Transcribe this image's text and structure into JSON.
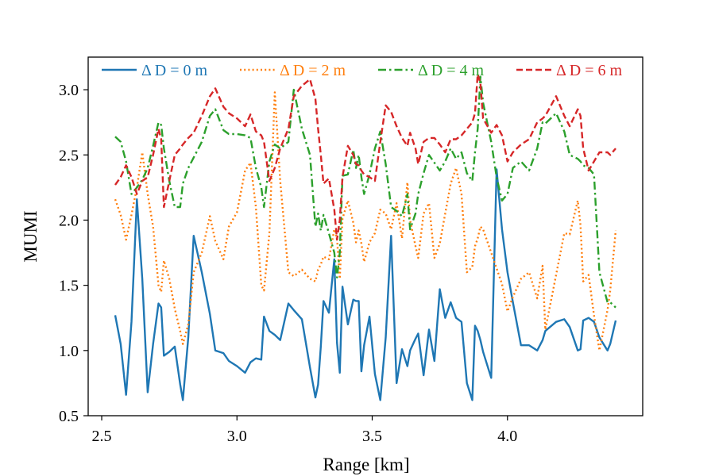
{
  "chart_data": {
    "type": "line",
    "title": "",
    "xlabel": "Range [km]",
    "ylabel": "MUMI",
    "xlim": [
      2.45,
      4.5
    ],
    "ylim": [
      0.5,
      3.25
    ],
    "xticks": [
      2.5,
      3.0,
      3.5,
      4.0
    ],
    "xtick_labels": [
      "2.5",
      "3.0",
      "3.5",
      "4.0"
    ],
    "yticks": [
      0.5,
      1.0,
      1.5,
      2.0,
      2.5,
      3.0
    ],
    "ytick_labels": [
      "0.5",
      "1.0",
      "1.5",
      "2.0",
      "2.5",
      "3.0"
    ],
    "grid": false,
    "legend": {
      "placement": "top",
      "ncol": 4
    },
    "series": [
      {
        "name": "Δ D = 0 m",
        "color": "#1f77b4",
        "style": "solid",
        "x": [
          2.55,
          2.57,
          2.59,
          2.61,
          2.63,
          2.65,
          2.67,
          2.69,
          2.71,
          2.72,
          2.73,
          2.75,
          2.77,
          2.79,
          2.8,
          2.82,
          2.84,
          2.87,
          2.9,
          2.92,
          2.95,
          2.97,
          3.0,
          3.03,
          3.05,
          3.07,
          3.09,
          3.1,
          3.12,
          3.14,
          3.16,
          3.19,
          3.21,
          3.24,
          3.27,
          3.29,
          3.3,
          3.31,
          3.32,
          3.34,
          3.36,
          3.37,
          3.38,
          3.39,
          3.41,
          3.43,
          3.44,
          3.45,
          3.46,
          3.47,
          3.49,
          3.51,
          3.53,
          3.55,
          3.57,
          3.59,
          3.61,
          3.63,
          3.64,
          3.66,
          3.67,
          3.69,
          3.71,
          3.73,
          3.75,
          3.77,
          3.79,
          3.81,
          3.83,
          3.85,
          3.87,
          3.88,
          3.89,
          3.9,
          3.91,
          3.94,
          3.96,
          3.98,
          4.0,
          4.02,
          4.05,
          4.08,
          4.11,
          4.13,
          4.14,
          4.18,
          4.21,
          4.23,
          4.26,
          4.27,
          4.28,
          4.3,
          4.32,
          4.34,
          4.37,
          4.38,
          4.4
        ],
        "values": [
          1.27,
          1.05,
          0.66,
          1.22,
          2.16,
          1.55,
          0.68,
          1.05,
          1.36,
          1.33,
          0.96,
          0.99,
          1.03,
          0.74,
          0.62,
          1.1,
          1.88,
          1.6,
          1.28,
          1.0,
          0.98,
          0.92,
          0.88,
          0.83,
          0.91,
          0.94,
          0.93,
          1.26,
          1.15,
          1.12,
          1.08,
          1.36,
          1.31,
          1.24,
          0.87,
          0.64,
          0.74,
          1.03,
          1.38,
          1.29,
          1.7,
          1.06,
          0.83,
          1.49,
          1.2,
          1.39,
          1.38,
          1.38,
          0.84,
          1.04,
          1.26,
          0.82,
          0.62,
          1.1,
          1.88,
          0.75,
          1.01,
          0.88,
          1.0,
          1.09,
          1.13,
          0.81,
          1.16,
          0.92,
          1.47,
          1.25,
          1.37,
          1.25,
          1.22,
          0.75,
          0.62,
          1.19,
          1.15,
          1.08,
          0.99,
          0.79,
          2.39,
          1.93,
          1.6,
          1.37,
          1.04,
          1.04,
          1.0,
          1.08,
          1.15,
          1.22,
          1.24,
          1.18,
          1.0,
          1.01,
          1.23,
          1.25,
          1.22,
          1.1,
          1.0,
          1.05,
          1.23
        ]
      },
      {
        "name": "Δ D = 2 m",
        "color": "#ff7f0e",
        "style": "dotted",
        "x": [
          2.55,
          2.57,
          2.59,
          2.61,
          2.63,
          2.65,
          2.67,
          2.69,
          2.71,
          2.72,
          2.73,
          2.75,
          2.77,
          2.79,
          2.8,
          2.82,
          2.84,
          2.87,
          2.9,
          2.92,
          2.95,
          2.97,
          3.0,
          3.03,
          3.05,
          3.07,
          3.09,
          3.1,
          3.12,
          3.14,
          3.16,
          3.19,
          3.21,
          3.24,
          3.27,
          3.29,
          3.3,
          3.31,
          3.32,
          3.34,
          3.36,
          3.37,
          3.38,
          3.39,
          3.41,
          3.43,
          3.44,
          3.45,
          3.46,
          3.47,
          3.49,
          3.51,
          3.53,
          3.55,
          3.57,
          3.59,
          3.61,
          3.63,
          3.64,
          3.66,
          3.67,
          3.69,
          3.71,
          3.73,
          3.75,
          3.77,
          3.79,
          3.81,
          3.83,
          3.85,
          3.87,
          3.88,
          3.89,
          3.9,
          3.91,
          3.94,
          3.96,
          3.98,
          4.0,
          4.02,
          4.05,
          4.08,
          4.11,
          4.13,
          4.14,
          4.18,
          4.21,
          4.23,
          4.26,
          4.27,
          4.28,
          4.3,
          4.32,
          4.34,
          4.37,
          4.38,
          4.4
        ],
        "values": [
          2.16,
          2.04,
          1.85,
          2.04,
          2.25,
          2.52,
          2.2,
          1.95,
          1.5,
          1.45,
          1.69,
          1.55,
          1.32,
          1.15,
          1.05,
          1.2,
          1.6,
          1.75,
          2.03,
          1.84,
          1.7,
          1.95,
          2.06,
          2.38,
          2.44,
          2.1,
          1.5,
          1.46,
          1.9,
          2.98,
          2.3,
          1.6,
          1.57,
          1.62,
          1.55,
          1.53,
          1.62,
          1.66,
          1.72,
          1.7,
          1.93,
          1.86,
          1.55,
          2.01,
          2.15,
          1.98,
          1.83,
          1.92,
          1.82,
          1.68,
          1.83,
          1.9,
          2.08,
          2.05,
          1.93,
          2.13,
          1.86,
          2.29,
          2.0,
          1.8,
          1.71,
          2.05,
          2.13,
          1.71,
          1.82,
          2.05,
          2.28,
          2.4,
          2.2,
          1.6,
          1.64,
          1.8,
          1.86,
          1.95,
          1.93,
          1.75,
          1.63,
          1.51,
          1.3,
          1.41,
          1.55,
          1.6,
          1.4,
          1.65,
          1.16,
          1.58,
          1.9,
          1.89,
          2.15,
          1.96,
          1.53,
          1.58,
          1.27,
          1.0,
          1.31,
          1.46,
          1.92
        ]
      },
      {
        "name": "Δ D = 4 m",
        "color": "#2ca02c",
        "style": "dashdot",
        "x": [
          2.55,
          2.57,
          2.59,
          2.61,
          2.63,
          2.65,
          2.67,
          2.69,
          2.71,
          2.72,
          2.73,
          2.75,
          2.77,
          2.79,
          2.8,
          2.82,
          2.84,
          2.87,
          2.9,
          2.92,
          2.95,
          2.97,
          3.0,
          3.03,
          3.05,
          3.07,
          3.09,
          3.1,
          3.12,
          3.14,
          3.16,
          3.19,
          3.21,
          3.24,
          3.27,
          3.29,
          3.3,
          3.31,
          3.32,
          3.34,
          3.36,
          3.37,
          3.38,
          3.39,
          3.41,
          3.43,
          3.44,
          3.45,
          3.46,
          3.47,
          3.49,
          3.51,
          3.53,
          3.55,
          3.57,
          3.59,
          3.61,
          3.63,
          3.64,
          3.66,
          3.67,
          3.69,
          3.71,
          3.73,
          3.75,
          3.77,
          3.79,
          3.81,
          3.83,
          3.85,
          3.87,
          3.88,
          3.89,
          3.9,
          3.91,
          3.94,
          3.96,
          3.98,
          4.0,
          4.02,
          4.05,
          4.08,
          4.11,
          4.13,
          4.14,
          4.18,
          4.21,
          4.23,
          4.26,
          4.27,
          4.28,
          4.3,
          4.32,
          4.34,
          4.37,
          4.38,
          4.4
        ],
        "values": [
          2.64,
          2.6,
          2.45,
          2.2,
          2.25,
          2.31,
          2.4,
          2.57,
          2.75,
          2.73,
          2.55,
          2.3,
          2.1,
          2.1,
          2.28,
          2.4,
          2.48,
          2.6,
          2.8,
          2.85,
          2.69,
          2.66,
          2.66,
          2.65,
          2.63,
          2.4,
          2.25,
          2.1,
          2.45,
          2.58,
          2.55,
          2.6,
          3.0,
          2.7,
          2.5,
          1.95,
          2.05,
          1.92,
          2.04,
          1.9,
          1.75,
          1.56,
          1.75,
          2.34,
          2.35,
          2.54,
          2.4,
          2.5,
          2.33,
          2.2,
          2.35,
          2.55,
          2.68,
          2.43,
          2.1,
          2.07,
          2.03,
          2.2,
          1.93,
          2.05,
          2.2,
          2.36,
          2.5,
          2.44,
          2.38,
          2.45,
          2.55,
          2.47,
          2.52,
          2.36,
          2.3,
          2.52,
          2.7,
          3.1,
          2.9,
          2.6,
          2.33,
          2.15,
          2.2,
          2.4,
          2.45,
          2.38,
          2.55,
          2.75,
          2.74,
          2.82,
          2.68,
          2.5,
          2.47,
          2.45,
          2.42,
          2.4,
          2.35,
          1.6,
          1.37,
          1.37,
          1.33
        ]
      },
      {
        "name": "Δ D = 6 m",
        "color": "#d62728",
        "style": "dashed",
        "x": [
          2.55,
          2.57,
          2.59,
          2.61,
          2.63,
          2.65,
          2.67,
          2.69,
          2.71,
          2.72,
          2.73,
          2.75,
          2.77,
          2.79,
          2.8,
          2.82,
          2.84,
          2.87,
          2.9,
          2.92,
          2.95,
          2.97,
          3.0,
          3.03,
          3.05,
          3.07,
          3.09,
          3.1,
          3.12,
          3.14,
          3.16,
          3.19,
          3.21,
          3.24,
          3.27,
          3.29,
          3.3,
          3.31,
          3.32,
          3.34,
          3.36,
          3.37,
          3.38,
          3.39,
          3.41,
          3.43,
          3.44,
          3.45,
          3.46,
          3.47,
          3.49,
          3.51,
          3.53,
          3.55,
          3.57,
          3.59,
          3.61,
          3.63,
          3.64,
          3.66,
          3.67,
          3.69,
          3.71,
          3.73,
          3.75,
          3.77,
          3.79,
          3.81,
          3.83,
          3.85,
          3.87,
          3.88,
          3.89,
          3.9,
          3.91,
          3.94,
          3.96,
          3.98,
          4.0,
          4.02,
          4.05,
          4.08,
          4.11,
          4.13,
          4.14,
          4.18,
          4.21,
          4.23,
          4.26,
          4.27,
          4.28,
          4.3,
          4.32,
          4.34,
          4.37,
          4.38,
          4.4
        ],
        "values": [
          2.27,
          2.33,
          2.42,
          2.33,
          2.2,
          2.3,
          2.33,
          2.5,
          2.7,
          2.62,
          2.1,
          2.3,
          2.5,
          2.55,
          2.58,
          2.63,
          2.67,
          2.8,
          2.95,
          3.01,
          2.87,
          2.82,
          2.78,
          2.72,
          2.81,
          2.68,
          2.65,
          2.6,
          2.3,
          2.4,
          2.55,
          2.7,
          2.95,
          3.03,
          3.08,
          2.93,
          2.7,
          2.5,
          2.28,
          2.32,
          2.08,
          1.85,
          2.0,
          2.33,
          2.57,
          2.5,
          2.43,
          2.42,
          2.38,
          2.35,
          2.33,
          2.3,
          2.6,
          2.88,
          2.83,
          2.72,
          2.63,
          2.57,
          2.67,
          2.55,
          2.43,
          2.6,
          2.63,
          2.63,
          2.58,
          2.52,
          2.62,
          2.62,
          2.65,
          2.7,
          2.75,
          2.82,
          3.12,
          3.05,
          2.78,
          2.67,
          2.73,
          2.65,
          2.45,
          2.52,
          2.58,
          2.62,
          2.75,
          2.78,
          2.8,
          2.95,
          2.8,
          2.72,
          2.85,
          2.8,
          2.55,
          2.38,
          2.45,
          2.52,
          2.52,
          2.5,
          2.55
        ]
      }
    ]
  }
}
